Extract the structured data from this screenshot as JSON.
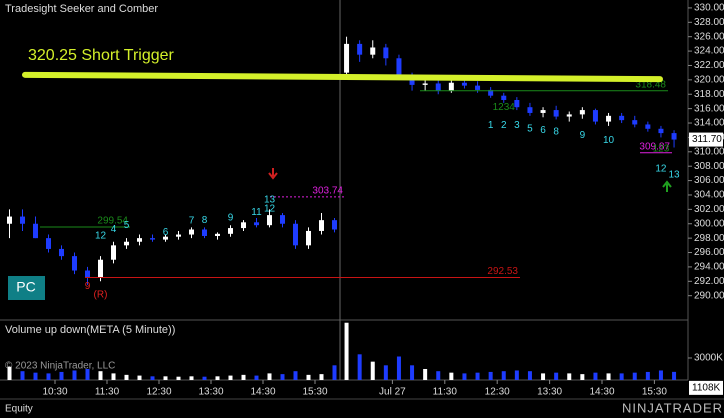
{
  "chart_data": {
    "type": "candlestick",
    "title": "Tradesight Seeker and Comber",
    "volume_title": "Volume up down(META (5 Minute))",
    "copyright": "© 2023 NinjaTrader, LLC",
    "footer": "Equity",
    "brand": "NINJATRADER",
    "button": "PC",
    "up_color": "#ffffff",
    "down_color": "#1e3cff",
    "ylim": [
      286.9,
      331.1
    ],
    "yticks": [
      {
        "value": 290,
        "label": "290.00"
      },
      {
        "value": 292,
        "label": "292.00"
      },
      {
        "value": 294,
        "label": "294.00"
      },
      {
        "value": 296,
        "label": "296.00"
      },
      {
        "value": 298,
        "label": "298.00"
      },
      {
        "value": 300,
        "label": "300.00"
      },
      {
        "value": 302,
        "label": "302.00"
      },
      {
        "value": 304,
        "label": "304.00"
      },
      {
        "value": 306,
        "label": "306.00"
      },
      {
        "value": 308,
        "label": "308.00"
      },
      {
        "value": 310,
        "label": "310.00"
      },
      {
        "value": 312,
        "label": "312.00"
      },
      {
        "value": 314,
        "label": "314.00"
      },
      {
        "value": 316,
        "label": "316.00"
      },
      {
        "value": 318,
        "label": "318.00"
      },
      {
        "value": 320,
        "label": "320.00"
      },
      {
        "value": 322,
        "label": "322.00"
      },
      {
        "value": 324,
        "label": "324.00"
      },
      {
        "value": 326,
        "label": "326.00"
      },
      {
        "value": 328,
        "label": "328.00"
      },
      {
        "value": 330,
        "label": "330.00"
      }
    ],
    "vlim": [
      0,
      7900000
    ],
    "vticks": [
      {
        "value": 3000000,
        "label": "3000K"
      }
    ],
    "last_price": {
      "value": 311.7,
      "label": "311.70"
    },
    "last_volume": {
      "value": 1108000,
      "label": "1108K"
    },
    "trigger": {
      "text": "320.25 Short Trigger",
      "from": 320.7,
      "to": 320.1,
      "color": "#d4f02a"
    },
    "levels": [
      {
        "value": 303.74,
        "label": "303.74",
        "color": "#e020e0"
      },
      {
        "value": 292.53,
        "label": "292.53",
        "color": "#c81414"
      },
      {
        "value": 318.48,
        "label": "318.48",
        "color": "#1a8a1a"
      },
      {
        "value": 299.54,
        "label": "299.54",
        "color": "#1a8a1a"
      },
      {
        "value": 309.87,
        "label": "309.87",
        "color": "#e020e0"
      }
    ],
    "sessions": [
      {
        "ticks": [
          "10:30",
          "11:30",
          "12:30",
          "13:30",
          "14:30",
          "15:30"
        ],
        "open": [
          300,
          301,
          300,
          298,
          296.5,
          295.5,
          293.5,
          292.5,
          295,
          297,
          297.5,
          298,
          297.8,
          298.2,
          298.5,
          299.2,
          298.3,
          298.6,
          299.4,
          300.2,
          299.8,
          301.2,
          300,
          297,
          299,
          300.5
        ],
        "high": [
          302,
          302,
          301,
          298.5,
          297,
          296,
          294,
          295.5,
          297.5,
          298,
          298.5,
          298.5,
          298.5,
          299,
          299.5,
          299.5,
          298.8,
          299.8,
          300.5,
          300.8,
          302,
          301.5,
          300.5,
          299.5,
          301.5,
          300.8
        ],
        "low": [
          298,
          299,
          298,
          296,
          295,
          293,
          291.5,
          292,
          294.5,
          296.5,
          297,
          297.5,
          297.5,
          297.8,
          298,
          298,
          297.8,
          298.2,
          299,
          299.5,
          299.5,
          299.5,
          296.5,
          296.5,
          298.5,
          298.8
        ],
        "close": [
          301,
          300,
          298,
          296.5,
          295.5,
          293.5,
          292.5,
          295,
          297,
          297.5,
          298,
          297.8,
          298.2,
          298.5,
          299.2,
          298.3,
          298.6,
          299.4,
          300.2,
          299.8,
          301.2,
          300,
          297,
          299,
          300.5,
          299.2
        ],
        "volume": [
          1800000,
          1200000,
          1000000,
          900000,
          1100000,
          1300000,
          1500000,
          1200000,
          900000,
          700000,
          600000,
          500000,
          500000,
          450000,
          500000,
          450000,
          500000,
          600000,
          700000,
          600000,
          900000,
          800000,
          1200000,
          700000,
          800000,
          2000000
        ]
      },
      {
        "ticks": [
          {
            "value": "10:30",
            "label": "Jul 27"
          },
          "11:30",
          "12:30",
          "13:30",
          "14:30",
          "15:30"
        ],
        "open": [
          321,
          325,
          323.5,
          324.5,
          323,
          320.5,
          319.3,
          319.5,
          318.5,
          319.6,
          319.2,
          318.6,
          317.8,
          317.2,
          316.2,
          315.4,
          315.8,
          314.9,
          315.2,
          315.8,
          314.2,
          315,
          314.4,
          313.8,
          313.2,
          312.6
        ],
        "high": [
          326,
          325.5,
          325.5,
          325,
          323.5,
          321,
          320,
          320,
          320,
          320,
          319.8,
          319,
          318.2,
          317.6,
          316.8,
          316.2,
          316.4,
          315.6,
          316.2,
          316,
          315.4,
          315.4,
          315,
          314.2,
          313.6,
          313
        ],
        "low": [
          320,
          322.5,
          323,
          322,
          320,
          318.5,
          318.5,
          318,
          318.2,
          318.8,
          318.2,
          317.5,
          316.8,
          315.8,
          315,
          314.8,
          314.5,
          314.2,
          314.6,
          313.8,
          313.6,
          314,
          313.4,
          312.8,
          312,
          310.6
        ],
        "close": [
          325,
          323.5,
          324.5,
          323,
          320.5,
          319.3,
          319.5,
          318.5,
          319.6,
          319.2,
          318.6,
          317.8,
          317.2,
          316.2,
          315.4,
          315.8,
          314.9,
          315.2,
          315.8,
          314.2,
          315,
          314.4,
          313.8,
          313.2,
          312.6,
          311.7
        ],
        "volume": [
          7800000,
          3500000,
          2500000,
          2000000,
          3200000,
          2000000,
          1500000,
          1200000,
          1000000,
          900000,
          1000000,
          1100000,
          1200000,
          1300000,
          1200000,
          900000,
          1000000,
          900000,
          800000,
          1000000,
          900000,
          900000,
          1000000,
          1100000,
          1300000,
          1108000
        ]
      }
    ],
    "counts": [
      {
        "text": "12",
        "session": 0,
        "bar": 7,
        "price": 298.3,
        "color": "#38d8e8"
      },
      {
        "text": "4",
        "session": 0,
        "bar": 8,
        "price": 299.2,
        "color": "#38d8e8"
      },
      {
        "text": "5",
        "session": 0,
        "bar": 9,
        "price": 299.8,
        "color": "#38d8e8"
      },
      {
        "text": "6",
        "session": 0,
        "bar": 12,
        "price": 298.8,
        "color": "#38d8e8"
      },
      {
        "text": "7",
        "session": 0,
        "bar": 14,
        "price": 300.4,
        "color": "#38d8e8"
      },
      {
        "text": "8",
        "session": 0,
        "bar": 15,
        "price": 300.5,
        "color": "#38d8e8"
      },
      {
        "text": "9",
        "session": 0,
        "bar": 17,
        "price": 300.8,
        "color": "#38d8e8"
      },
      {
        "text": "11",
        "session": 0,
        "bar": 19,
        "price": 301.6,
        "color": "#38d8e8"
      },
      {
        "text": "12",
        "session": 0,
        "bar": 20,
        "price": 302.1,
        "color": "#38d8e8"
      },
      {
        "text": "13",
        "session": 0,
        "bar": 20,
        "price": 303.3,
        "color": "#38d8e8"
      },
      {
        "text": "9",
        "session": 0,
        "bar": 6,
        "price": 291.3,
        "color": "#e02020"
      },
      {
        "text": "(R)",
        "session": 0,
        "bar": 7,
        "price": 290.1,
        "color": "#e02020"
      },
      {
        "text": "1",
        "session": 1,
        "bar": 11,
        "price": 313.7,
        "color": "#38d8e8"
      },
      {
        "text": "2",
        "session": 1,
        "bar": 12,
        "price": 313.7,
        "color": "#38d8e8"
      },
      {
        "text": "3",
        "session": 1,
        "bar": 13,
        "price": 313.7,
        "color": "#38d8e8"
      },
      {
        "text": "5",
        "session": 1,
        "bar": 14,
        "price": 313.2,
        "color": "#38d8e8"
      },
      {
        "text": "6",
        "session": 1,
        "bar": 15,
        "price": 313,
        "color": "#38d8e8"
      },
      {
        "text": "8",
        "session": 1,
        "bar": 16,
        "price": 312.8,
        "color": "#38d8e8"
      },
      {
        "text": "9",
        "session": 1,
        "bar": 18,
        "price": 312.3,
        "color": "#38d8e8"
      },
      {
        "text": "10",
        "session": 1,
        "bar": 20,
        "price": 311.6,
        "color": "#38d8e8"
      },
      {
        "text": "12",
        "session": 1,
        "bar": 24,
        "price": 307.6,
        "color": "#38d8e8"
      },
      {
        "text": "13",
        "session": 1,
        "bar": 25,
        "price": 306.8,
        "color": "#38d8e8"
      },
      {
        "text": "1234",
        "session": 1,
        "bar": 12,
        "price": 316.2,
        "color": "#1a8a1a"
      },
      {
        "text": "123",
        "session": 1,
        "bar": 24,
        "price": 310.4,
        "color": "#1a8a1a"
      }
    ]
  }
}
